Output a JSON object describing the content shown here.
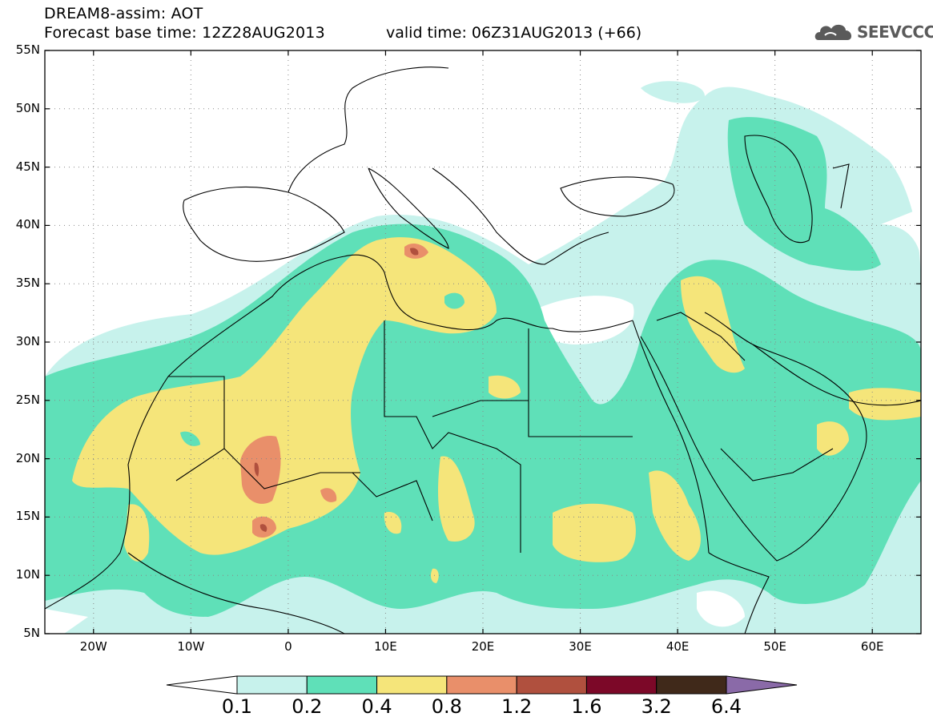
{
  "header": {
    "title": "DREAM8-assim: AOT",
    "base_time": "Forecast base time: 12Z28AUG2013",
    "valid_time": "valid time: 06Z31AUG2013 (+66)"
  },
  "logo": {
    "text": "SEEVCCC",
    "icon": "cloud-icon"
  },
  "axes": {
    "lat_labels": [
      "55N",
      "50N",
      "45N",
      "40N",
      "35N",
      "30N",
      "25N",
      "20N",
      "15N",
      "10N",
      "5N"
    ],
    "lon_labels": [
      "20W",
      "10W",
      "0",
      "10E",
      "20E",
      "30E",
      "40E",
      "50E",
      "60E"
    ],
    "lat_range": [
      5,
      55
    ],
    "lon_range": [
      -25,
      65
    ],
    "grid": "dotted"
  },
  "colorbar": {
    "levels": [
      "0.1",
      "0.2",
      "0.4",
      "0.8",
      "1.2",
      "1.6",
      "3.2",
      "6.4"
    ],
    "colors": [
      "#c7f2ec",
      "#5fe0b8",
      "#f5e57a",
      "#e98f6a",
      "#b0503e",
      "#7c0828",
      "#40291a",
      "#8a6aa8"
    ]
  },
  "colors": {
    "level1": "#c7f2ec",
    "level2": "#5fe0b8",
    "level3": "#f5e57a",
    "level4": "#e98f6a",
    "level5": "#b0503e"
  }
}
